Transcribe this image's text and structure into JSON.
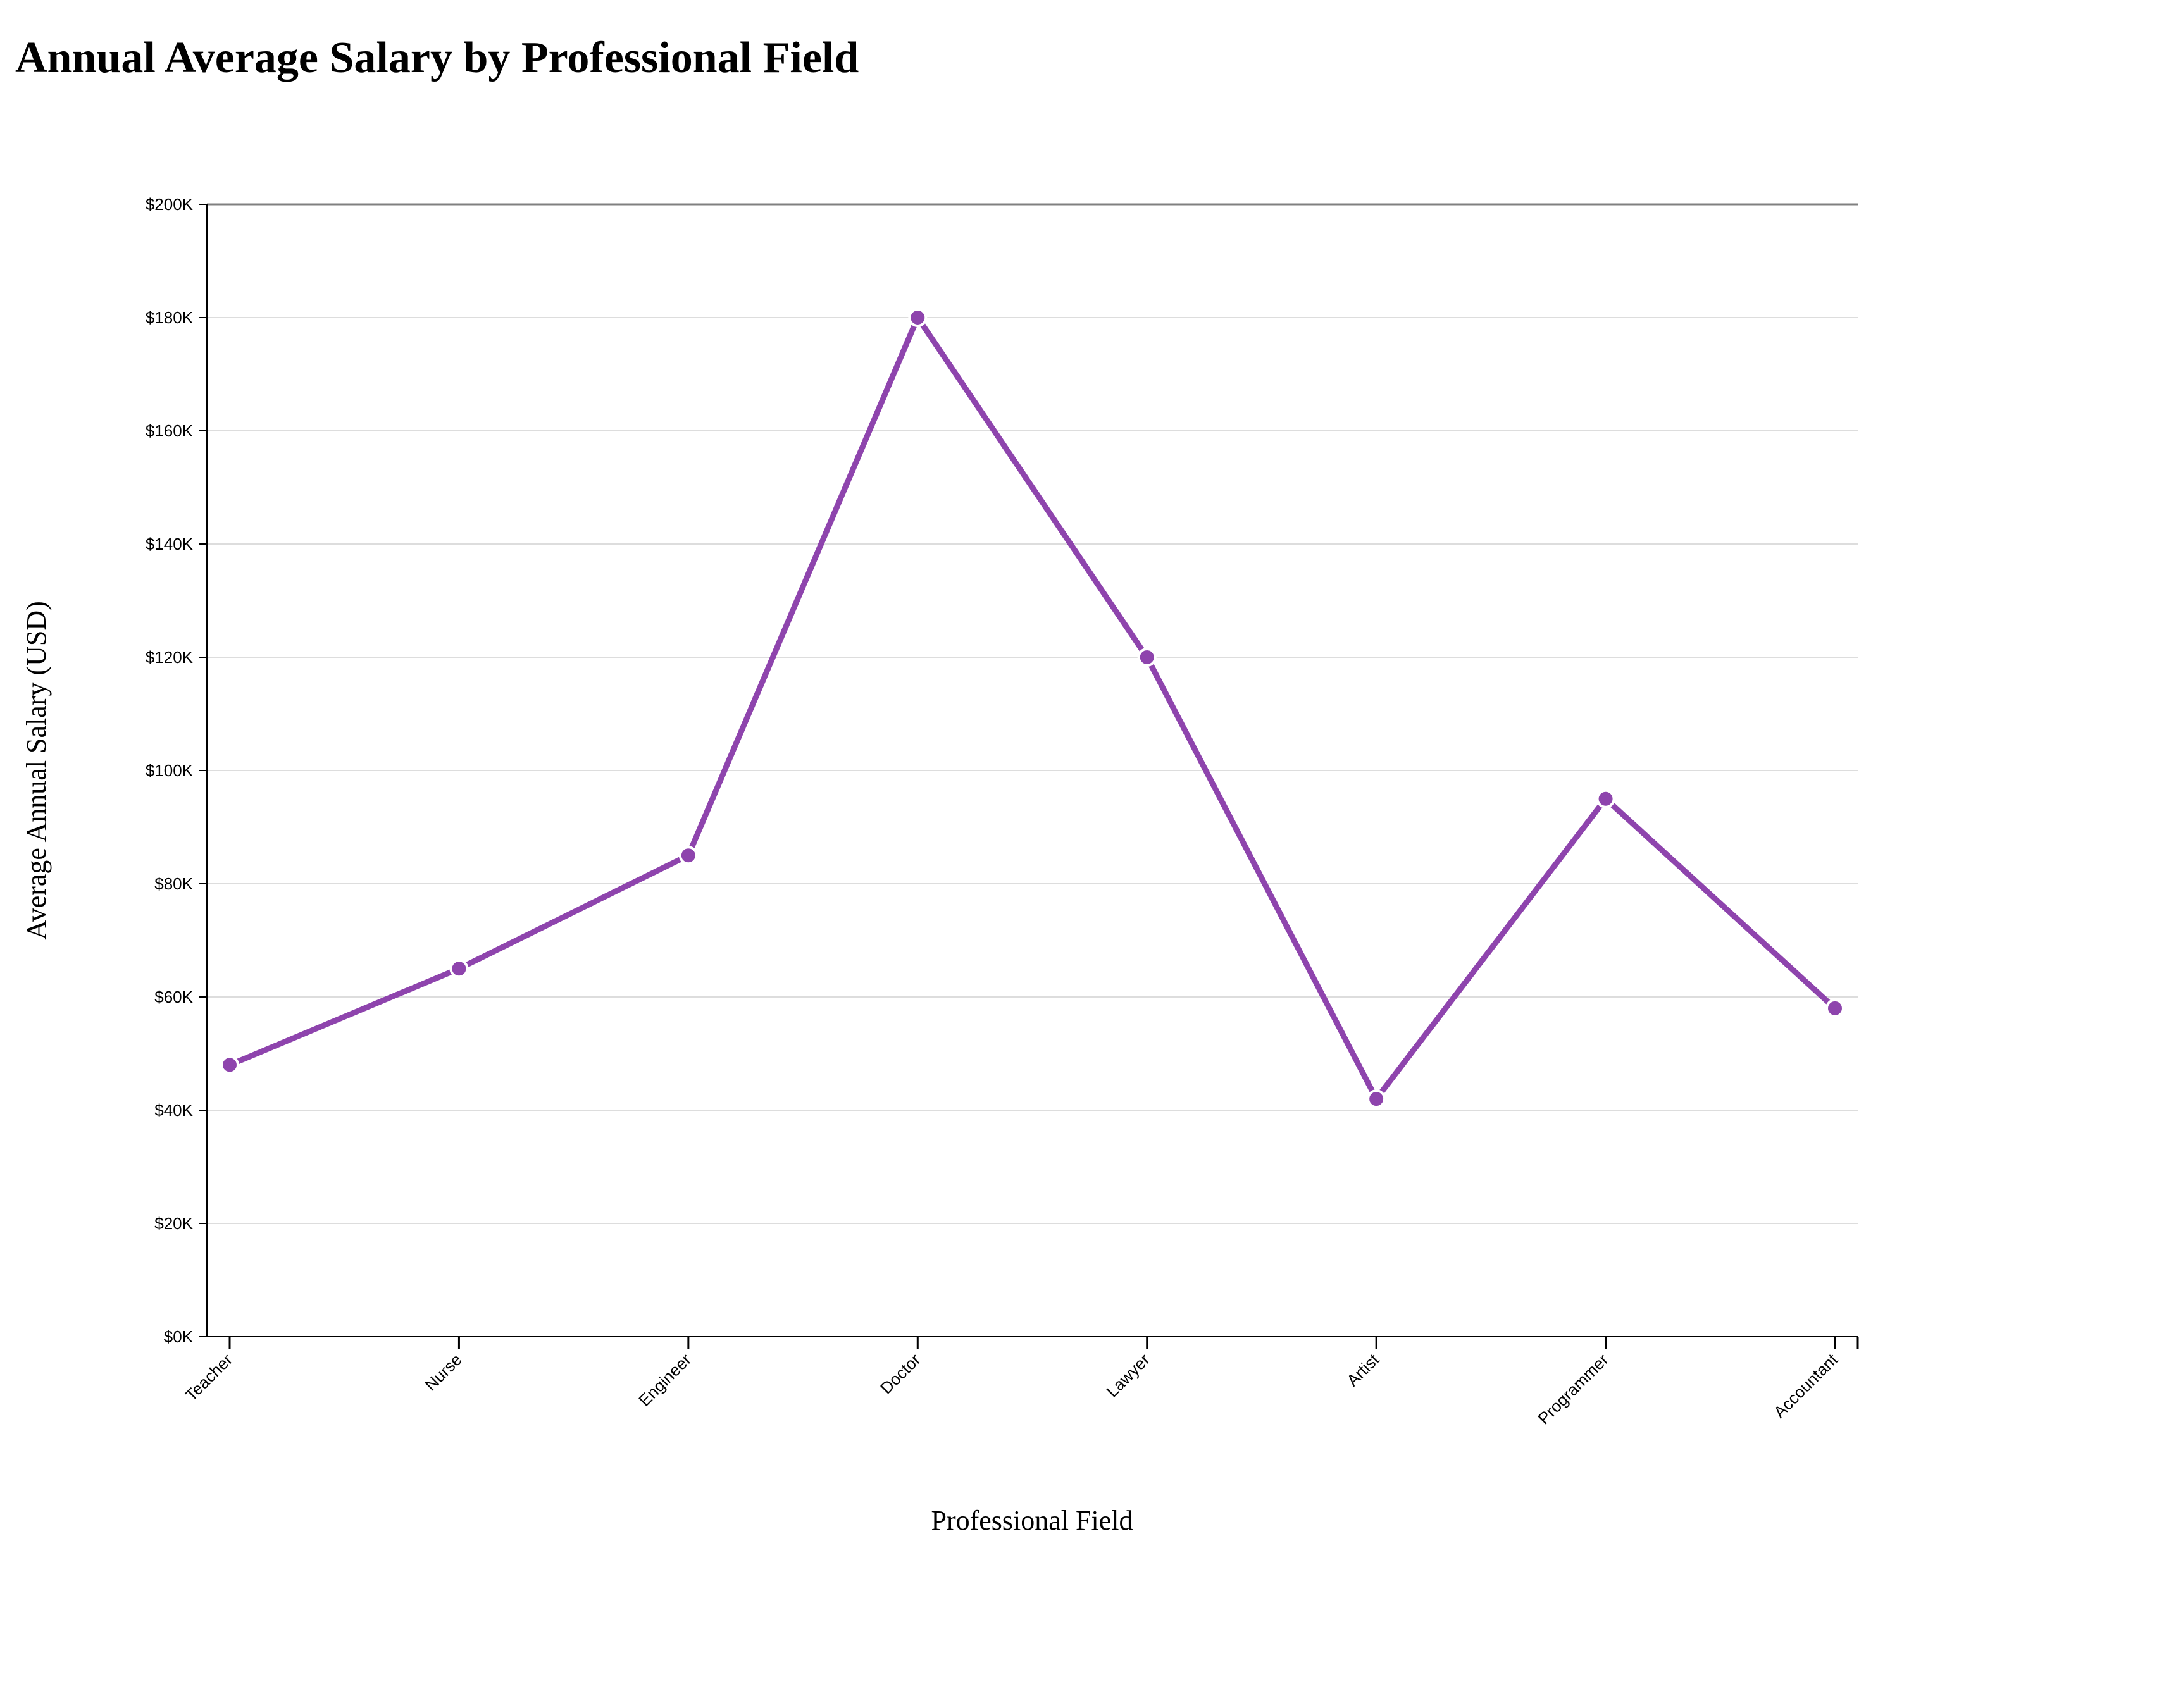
{
  "title": "Annual Average Salary by Professional Field",
  "chart_data": {
    "type": "line",
    "title": "Annual Average Salary by Professional Field",
    "xlabel": "Professional Field",
    "ylabel": "Average Annual Salary (USD)",
    "categories": [
      "Teacher",
      "Nurse",
      "Engineer",
      "Doctor",
      "Lawyer",
      "Artist",
      "Programmer",
      "Accountant"
    ],
    "values": [
      48000,
      65000,
      85000,
      180000,
      120000,
      42000,
      95000,
      58000
    ],
    "ylim": [
      0,
      200000
    ],
    "yticks": [
      0,
      20000,
      40000,
      60000,
      80000,
      100000,
      120000,
      140000,
      160000,
      180000,
      200000
    ],
    "ytick_labels": [
      "$0K",
      "$20K",
      "$40K",
      "$60K",
      "$80K",
      "$100K",
      "$120K",
      "$140K",
      "$160K",
      "$180K",
      "$200K"
    ],
    "grid": true,
    "line_color": "#8e44ad",
    "marker_color": "#8e44ad",
    "marker_edge_color": "#ffffff"
  }
}
